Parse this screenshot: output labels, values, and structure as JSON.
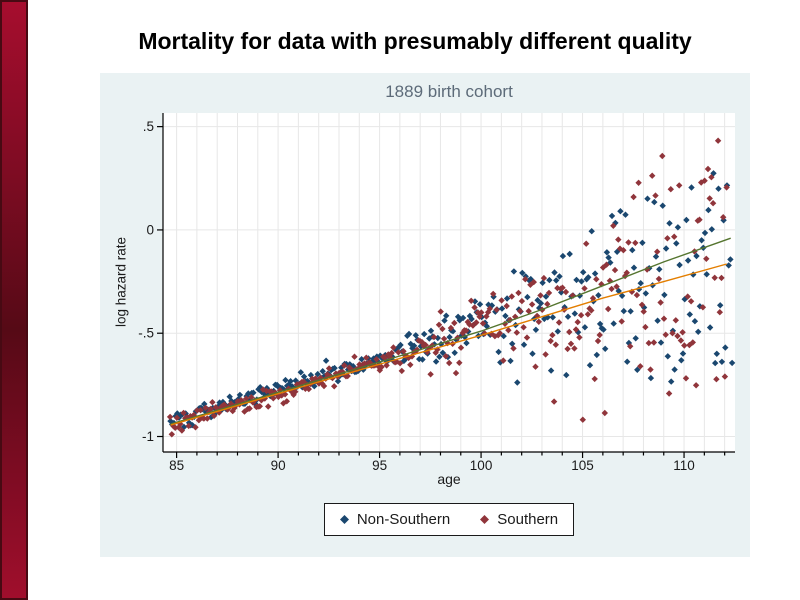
{
  "slide": {
    "title": "Mortality for data with presumably different quality",
    "background_color": "#ffffff",
    "accent_bar": {
      "top_color": "#a60d2e",
      "middle_color": "#560a16",
      "bottom_color": "#a00e2c",
      "border_color": "#470a13"
    }
  },
  "chart_data": {
    "type": "scatter",
    "title": "1889 birth cohort",
    "xlabel": "age",
    "ylabel": "log hazard rate",
    "colors": {
      "chart_background": "#eaf2f3",
      "plot_background": "#ffffff",
      "grid": "#e7e7e7",
      "axis": "#000000",
      "title_color": "#5d6b79",
      "tick_label_color": "#1a1a1a"
    },
    "x_axis": {
      "range": [
        84.33,
        112.51
      ],
      "major_ticks": [
        85,
        90,
        95,
        100,
        105,
        110
      ],
      "minor_tick_step": 1,
      "grid": true
    },
    "y_axis": {
      "range": [
        -1.075,
        0.566
      ],
      "ticks": [
        {
          "v": 0.5,
          "label": ".5"
        },
        {
          "v": 0,
          "label": "0"
        },
        {
          "v": -0.5,
          "label": "-.5"
        },
        {
          "v": -1,
          "label": "-1"
        }
      ],
      "grid": true
    },
    "legend": {
      "position": "bottom-center",
      "border": true
    },
    "series": [
      {
        "name": "Non-Southern",
        "color": "#1a476f",
        "marker": "diamond",
        "trend": {
          "age_at_intercept": 85,
          "intercept": -0.92,
          "slope_per_year": 0.0302
        },
        "gen": {
          "seed": 101,
          "age_start": 84.7,
          "age_end": 112.42,
          "age_step": 0.08333,
          "intercept": -0.92,
          "slope": 0.0302,
          "noise": {
            "base": 0.02,
            "ramp_start": 95,
            "ramp_rate": 0.012,
            "wide_start": 103,
            "wide_rate": 0.022,
            "neg_skew": 1.1,
            "clamp": 0.55
          }
        }
      },
      {
        "name": "Southern",
        "color": "#90353b",
        "marker": "diamond",
        "trend": {
          "age_at_intercept": 85,
          "intercept": -0.935,
          "slope_per_year": 0.0298
        },
        "gen": {
          "seed": 202,
          "age_start": 84.68,
          "age_end": 112.15,
          "age_step": 0.08333,
          "intercept": -0.935,
          "slope": 0.0298,
          "noise": {
            "base": 0.02,
            "ramp_start": 95,
            "ramp_rate": 0.012,
            "wide_start": 103,
            "wide_rate": 0.024,
            "neg_skew": 1.35,
            "clamp": 0.58
          }
        }
      }
    ],
    "fit_lines": [
      {
        "name": "Non-Southern fit",
        "color": "#55752f",
        "points": [
          [
            84.7,
            -0.94
          ],
          [
            95,
            -0.64
          ],
          [
            100,
            -0.49
          ],
          [
            103,
            -0.385
          ],
          [
            106,
            -0.27
          ],
          [
            109,
            -0.155
          ],
          [
            112.3,
            -0.04
          ]
        ]
      },
      {
        "name": "Southern fit",
        "color": "#e37e00",
        "points": [
          [
            84.7,
            -0.945
          ],
          [
            95,
            -0.65
          ],
          [
            100,
            -0.51
          ],
          [
            103,
            -0.42
          ],
          [
            106,
            -0.33
          ],
          [
            109,
            -0.25
          ],
          [
            112.1,
            -0.165
          ]
        ]
      }
    ]
  }
}
